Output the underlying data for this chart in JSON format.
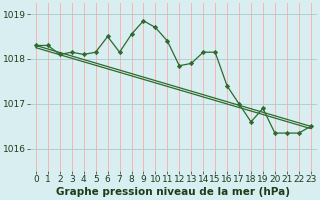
{
  "bg_color": "#d8eef0",
  "plot_bg_color": "#d8eef0",
  "grid_color_v": "#ffaaaa",
  "grid_color_h": "#aacccc",
  "line_color": "#2d6a2d",
  "marker_color": "#2d6a2d",
  "xlim": [
    -0.5,
    23.5
  ],
  "ylim": [
    1015.5,
    1019.25
  ],
  "yticks": [
    1016,
    1017,
    1018,
    1019
  ],
  "xticks": [
    0,
    1,
    2,
    3,
    4,
    5,
    6,
    7,
    8,
    9,
    10,
    11,
    12,
    13,
    14,
    15,
    16,
    17,
    18,
    19,
    20,
    21,
    22,
    23
  ],
  "series1_x": [
    0,
    1,
    2,
    3,
    4,
    5,
    6,
    7,
    8,
    9,
    10,
    11,
    12,
    13,
    14,
    15,
    16,
    17,
    18,
    19,
    20,
    21,
    22,
    23
  ],
  "series1_y": [
    1018.3,
    1018.3,
    1018.1,
    1018.15,
    1018.1,
    1018.15,
    1018.5,
    1018.15,
    1018.55,
    1018.85,
    1018.7,
    1018.4,
    1017.85,
    1017.9,
    1018.15,
    1018.15,
    1017.4,
    1017.0,
    1016.6,
    1016.9,
    1016.35,
    1016.35,
    1016.35,
    1016.5
  ],
  "series2_x": [
    0,
    23
  ],
  "series2_y": [
    1018.3,
    1016.5
  ],
  "series3_x": [
    0,
    23
  ],
  "series3_y": [
    1018.25,
    1016.45
  ],
  "xlabel": "Graphe pression niveau de la mer (hPa)",
  "xlabel_fontsize": 7.5,
  "tick_fontsize": 6.5
}
